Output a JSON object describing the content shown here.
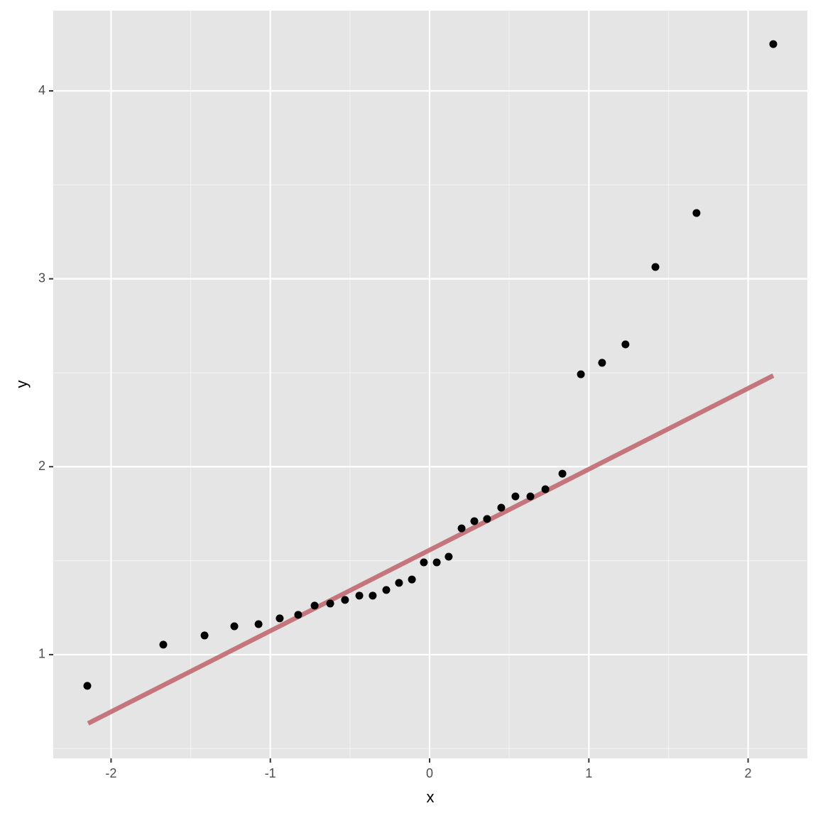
{
  "chart_data": {
    "type": "scatter",
    "x_label": "x",
    "y_label": "y",
    "xlim": [
      -2.363,
      2.372
    ],
    "ylim": [
      0.448,
      4.427
    ],
    "xticks": [
      -2,
      -1,
      0,
      1,
      2
    ],
    "yticks": [
      1,
      2,
      3,
      4
    ],
    "minor_xticks": [
      -1.5,
      -0.5,
      0.5,
      1.5
    ],
    "minor_yticks": [
      0.5,
      1.5,
      2.5,
      3.5
    ],
    "grid": true,
    "background": "#e5e5e5",
    "points": {
      "color": "#000000",
      "x": [
        -2.149,
        -1.672,
        -1.413,
        -1.226,
        -1.074,
        -0.941,
        -0.825,
        -0.722,
        -0.624,
        -0.531,
        -0.441,
        -0.357,
        -0.272,
        -0.192,
        -0.111,
        -0.036,
        0.045,
        0.12,
        0.201,
        0.281,
        0.361,
        0.45,
        0.539,
        0.633,
        0.727,
        0.834,
        0.95,
        1.083,
        1.23,
        1.418,
        1.676,
        2.158
      ],
      "y": [
        0.834,
        1.053,
        1.102,
        1.151,
        1.162,
        1.193,
        1.212,
        1.261,
        1.272,
        1.291,
        1.314,
        1.314,
        1.344,
        1.382,
        1.4,
        1.491,
        1.491,
        1.521,
        1.672,
        1.71,
        1.722,
        1.782,
        1.842,
        1.842,
        1.88,
        1.963,
        2.492,
        2.553,
        2.651,
        3.063,
        3.35,
        4.249
      ]
    },
    "line": {
      "color": "#c0636a",
      "x": [
        -2.144,
        2.158
      ],
      "y": [
        0.634,
        2.485
      ]
    }
  }
}
